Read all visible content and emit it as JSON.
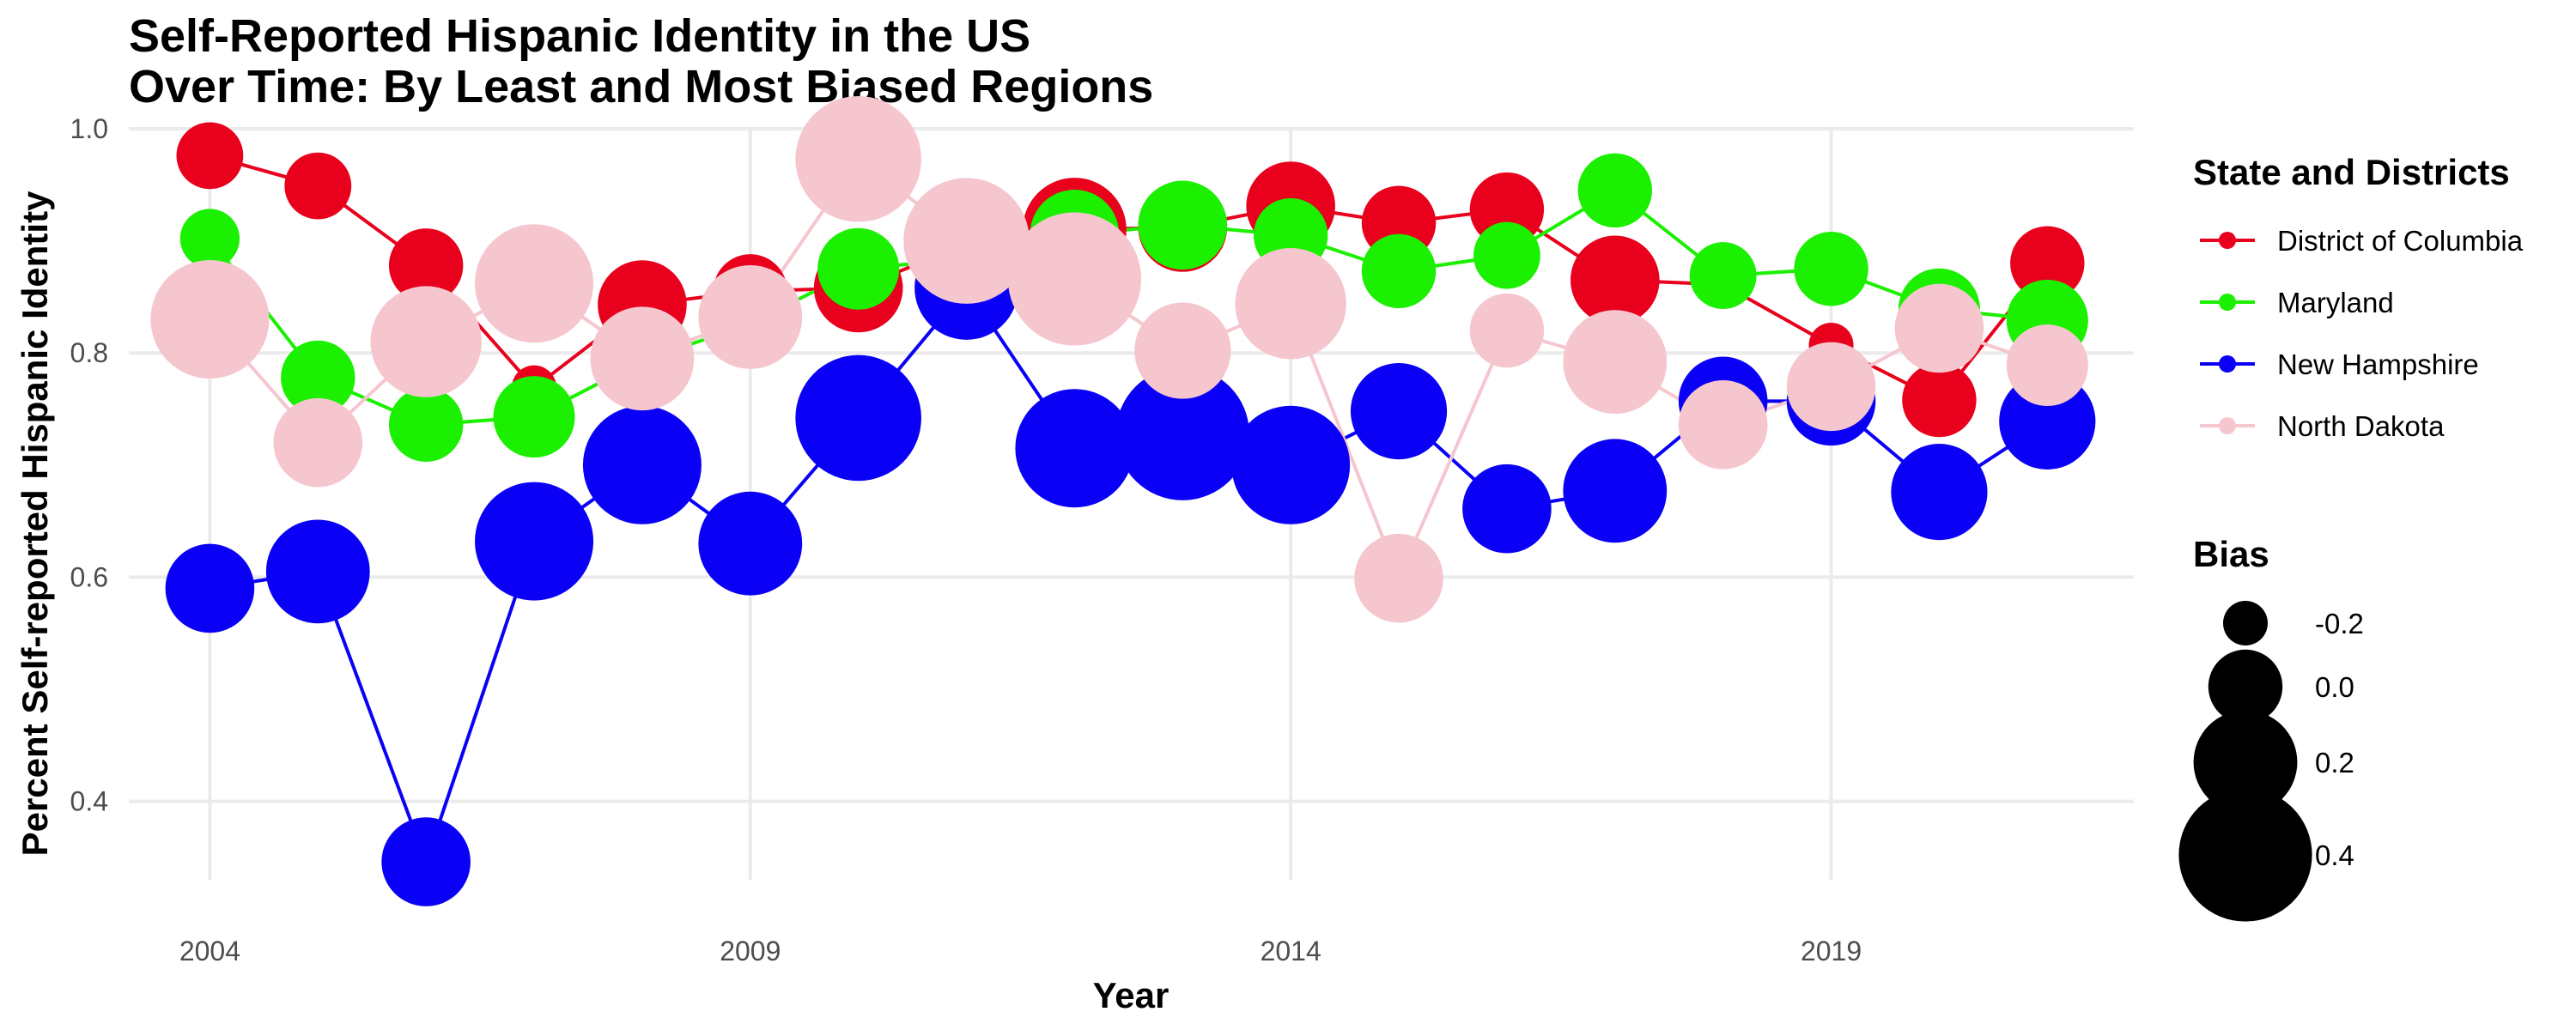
{
  "chart_data": {
    "type": "line",
    "title_lines": [
      "Self-Reported Hispanic Identity in the US",
      "Over Time: By Least and Most Biased Regions"
    ],
    "xlabel": "Year",
    "ylabel": "Percent Self-reported Hispanic Identity",
    "xlim": [
      2003.25,
      2021.8
    ],
    "ylim": [
      0.33,
      1.0
    ],
    "x_ticks": [
      2004,
      2009,
      2014,
      2019
    ],
    "y_ticks": [
      0.4,
      0.6,
      0.8,
      1.0
    ],
    "y_tick_labels": [
      "0.4",
      "0.6",
      "0.8",
      "1.0"
    ],
    "grid": true,
    "legend": {
      "color_title": "State and Districts",
      "size_title": "Bias",
      "placement": "right",
      "size_entries": [
        {
          "label": "-0.2",
          "value": -0.2
        },
        {
          "label": "0.0",
          "value": 0.0
        },
        {
          "label": "0.2",
          "value": 0.2
        },
        {
          "label": "0.4",
          "value": 0.4
        }
      ]
    },
    "series": [
      {
        "name": "District of Columbia",
        "color": "#E8001C",
        "x": [
          2004,
          2005,
          2006,
          2007,
          2008,
          2009,
          2010,
          2011,
          2012,
          2013,
          2014,
          2015,
          2016,
          2017,
          2018,
          2019,
          2020,
          2021
        ],
        "y": [
          0.976,
          0.949,
          0.878,
          0.769,
          0.843,
          0.855,
          0.858,
          0.897,
          0.91,
          0.912,
          0.931,
          0.916,
          0.928,
          0.865,
          0.861,
          0.807,
          0.758,
          0.88
        ],
        "bias": [
          -0.05,
          -0.05,
          0.0,
          -0.2,
          0.1,
          0.0,
          0.1,
          0.2,
          0.2,
          0.1,
          0.1,
          0.0,
          0.0,
          0.1,
          -0.2,
          -0.2,
          0.0,
          0.0
        ]
      },
      {
        "name": "Maryland",
        "color": "#1AF000",
        "x": [
          2004,
          2005,
          2006,
          2007,
          2008,
          2009,
          2010,
          2011,
          2012,
          2013,
          2014,
          2015,
          2016,
          2017,
          2018,
          2019,
          2020,
          2021
        ],
        "y": [
          0.902,
          0.778,
          0.736,
          0.743,
          0.793,
          0.826,
          0.875,
          0.884,
          0.906,
          0.914,
          0.905,
          0.873,
          0.887,
          0.945,
          0.869,
          0.875,
          0.839,
          0.829
        ],
        "bias": [
          -0.1,
          0.0,
          0.0,
          0.05,
          -0.2,
          -0.2,
          0.05,
          -0.2,
          0.1,
          0.1,
          0.0,
          0.0,
          -0.05,
          0.0,
          -0.05,
          0.0,
          0.05,
          0.05
        ]
      },
      {
        "name": "New Hampshire",
        "color": "#0A00F5",
        "x": [
          2004,
          2005,
          2006,
          2007,
          2008,
          2009,
          2010,
          2011,
          2012,
          2013,
          2014,
          2015,
          2016,
          2017,
          2018,
          2019,
          2020,
          2021
        ],
        "y": [
          0.59,
          0.605,
          0.346,
          0.632,
          0.7,
          0.63,
          0.742,
          0.858,
          0.715,
          0.728,
          0.7,
          0.748,
          0.661,
          0.677,
          0.757,
          0.757,
          0.676,
          0.739
        ],
        "bias": [
          0.1,
          0.2,
          0.1,
          0.3,
          0.3,
          0.2,
          0.35,
          0.2,
          0.3,
          0.4,
          0.3,
          0.15,
          0.1,
          0.2,
          0.1,
          0.1,
          0.15,
          0.15
        ]
      },
      {
        "name": "North Dakota",
        "color": "#F5C6CE",
        "x": [
          2004,
          2005,
          2006,
          2007,
          2008,
          2009,
          2010,
          2011,
          2012,
          2013,
          2014,
          2015,
          2016,
          2017,
          2018,
          2019,
          2020,
          2021
        ],
        "y": [
          0.83,
          0.72,
          0.81,
          0.862,
          0.795,
          0.832,
          0.973,
          0.9,
          0.866,
          0.802,
          0.844,
          0.599,
          0.82,
          0.792,
          0.736,
          0.77,
          0.822,
          0.789
        ],
        "bias": [
          0.3,
          0.1,
          0.25,
          0.3,
          0.2,
          0.2,
          0.35,
          0.35,
          0.4,
          0.15,
          0.25,
          0.1,
          0.0,
          0.2,
          0.1,
          0.1,
          0.1,
          0.05
        ]
      }
    ]
  }
}
